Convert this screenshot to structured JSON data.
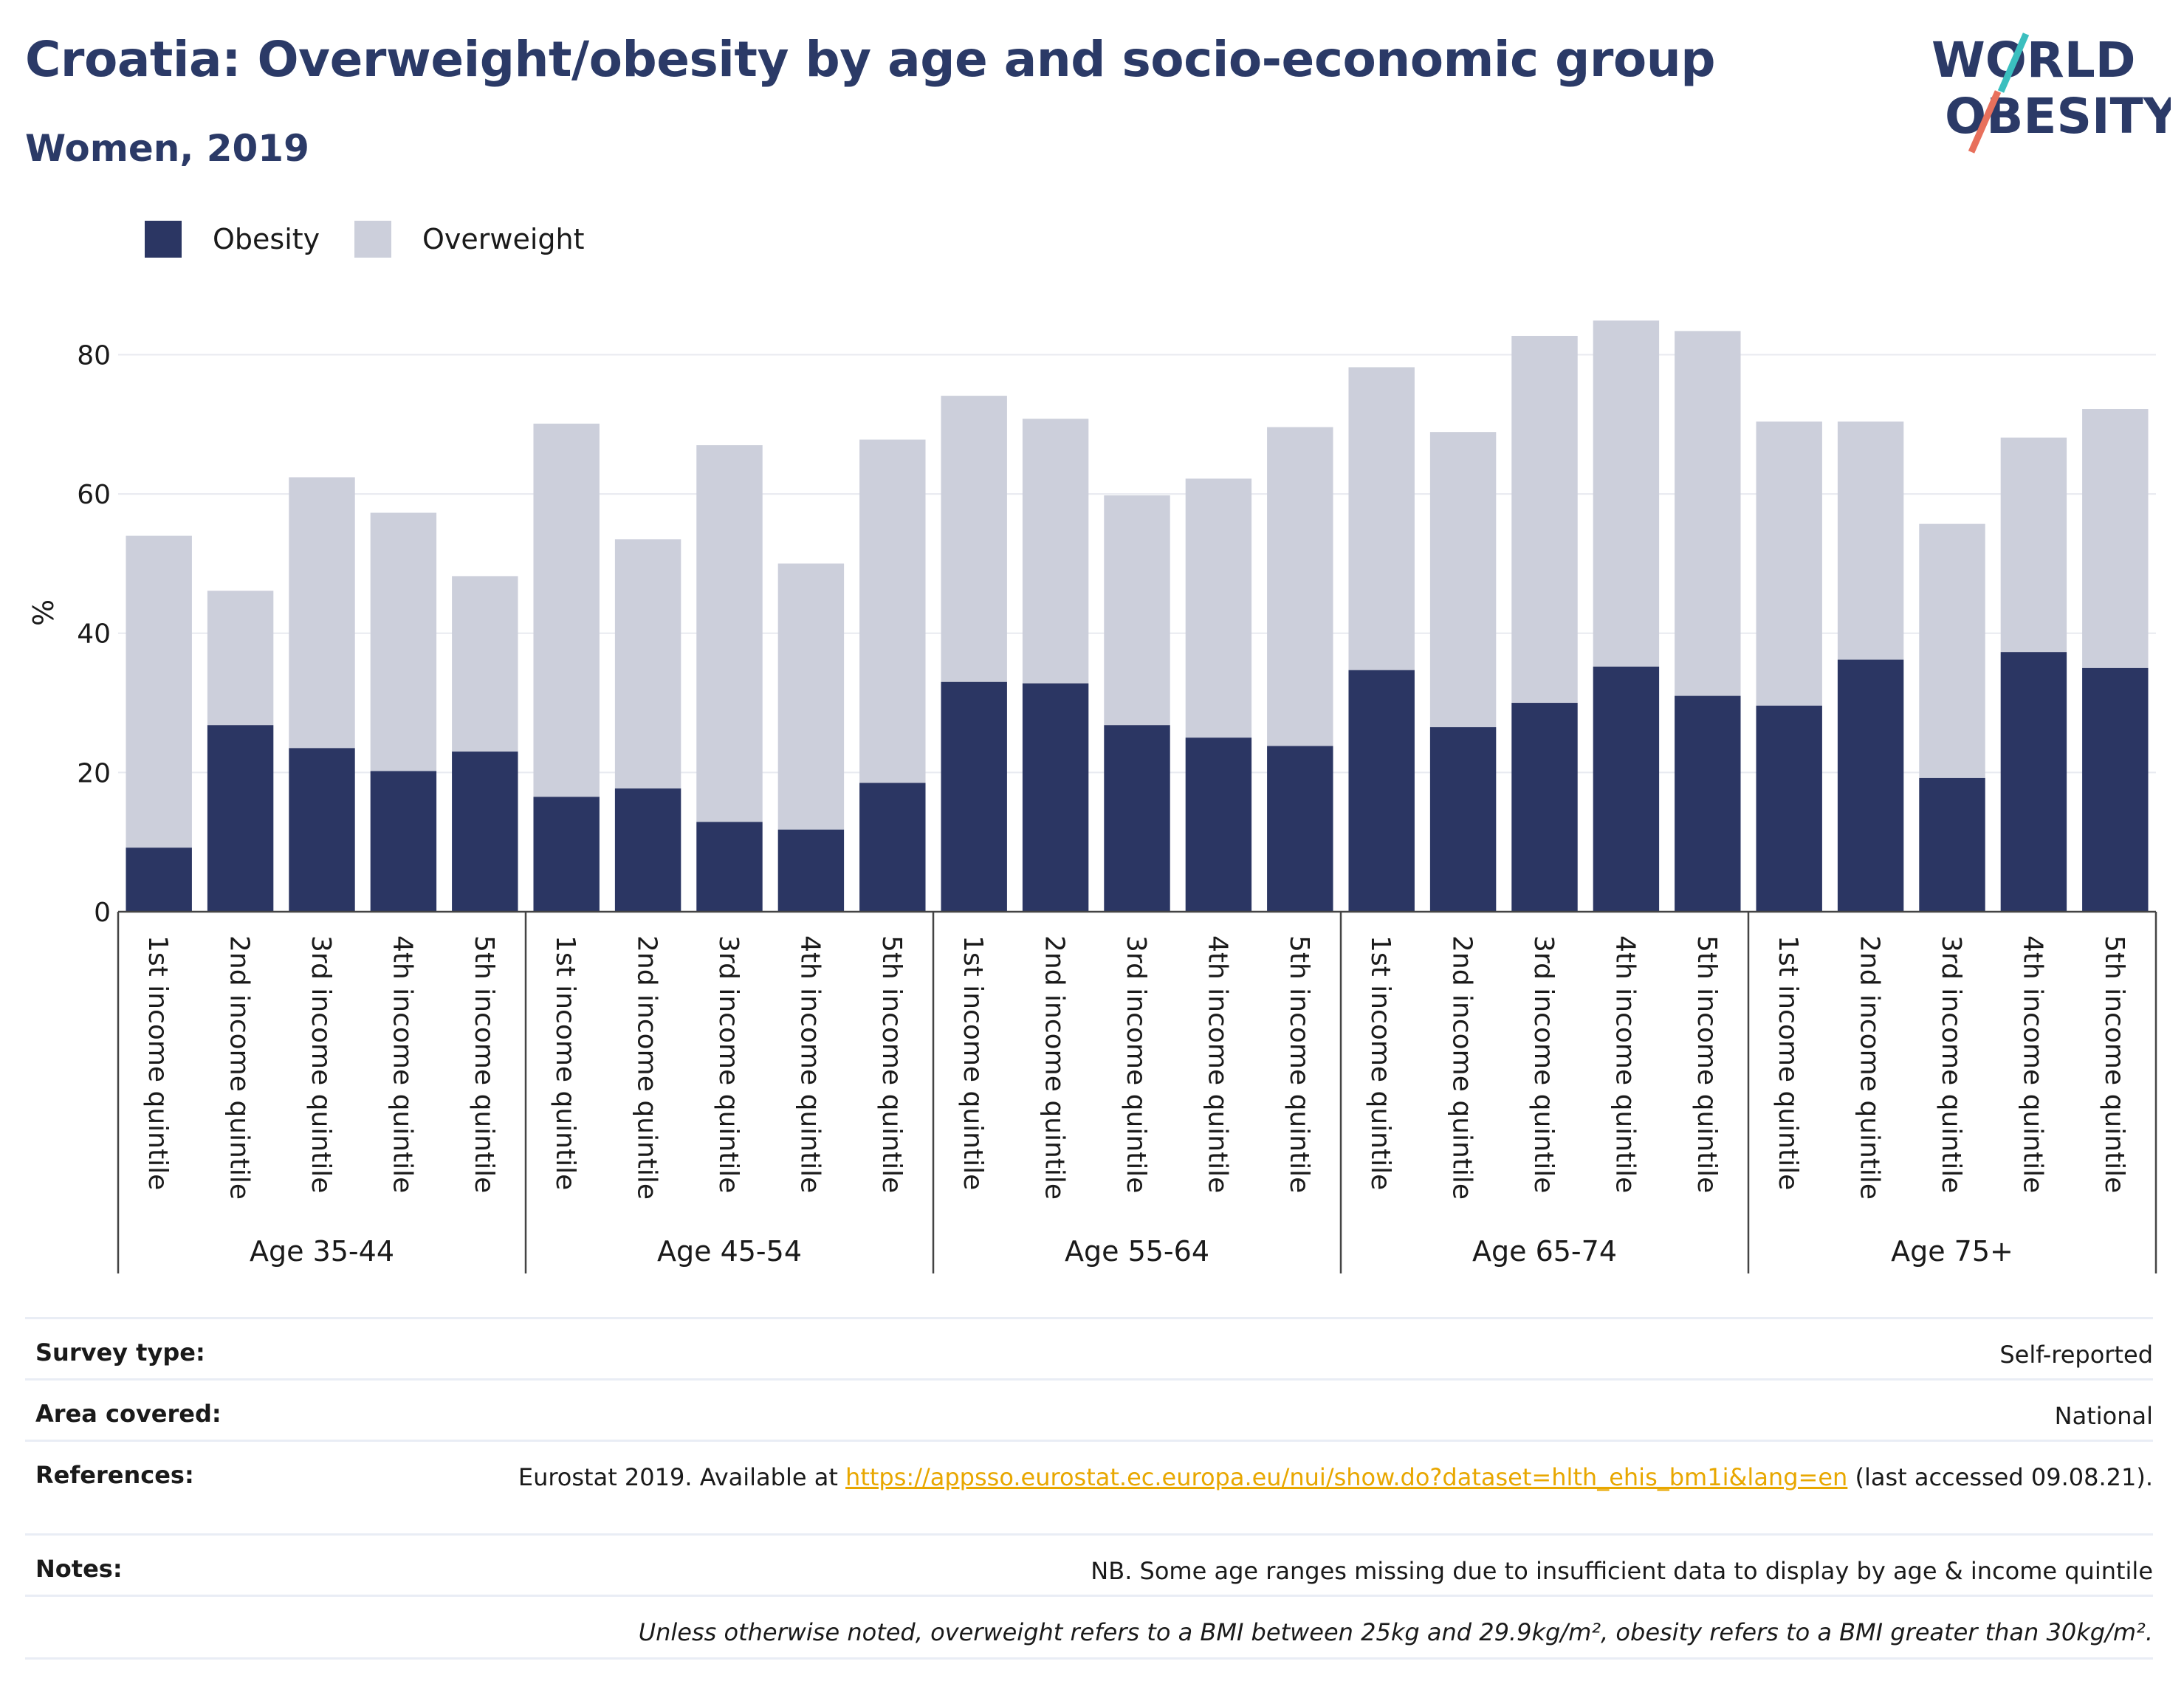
{
  "header": {
    "title": "Croatia: Overweight/obesity by age and socio-economic group",
    "subtitle": "Women, 2019"
  },
  "logo": {
    "line1": "WORLD",
    "line2": "OBESITY",
    "icon": "world-obesity-logo"
  },
  "colors": {
    "obesity": "#2b3663",
    "overweight": "#cccfdb",
    "title": "#2b3a67",
    "link": "#e8a700",
    "logo_teal": "#3bbfbf",
    "logo_coral": "#e8705c"
  },
  "legend": [
    {
      "label": "Obesity",
      "color": "#2b3663"
    },
    {
      "label": "Overweight",
      "color": "#cccfdb"
    }
  ],
  "chart_data": {
    "type": "bar",
    "stacked": true,
    "ylabel": "%",
    "xlabel": "",
    "ylim": [
      0,
      88
    ],
    "yticks": [
      0,
      20,
      40,
      60,
      80
    ],
    "grid": true,
    "legend_position": "top-left",
    "groups": [
      "Age 35-44",
      "Age 45-54",
      "Age 55-64",
      "Age 65-74",
      "Age 75+"
    ],
    "categories": [
      "1st income quintile",
      "2nd income quintile",
      "3rd income quintile",
      "4th income quintile",
      "5th income quintile"
    ],
    "series": [
      {
        "name": "Obesity",
        "values": [
          [
            9.2,
            26.8,
            23.5,
            20.2,
            23.0
          ],
          [
            16.5,
            17.7,
            12.9,
            11.8,
            18.5
          ],
          [
            33.0,
            32.8,
            26.8,
            25.0,
            23.8
          ],
          [
            34.7,
            26.5,
            30.0,
            35.2,
            31.0
          ],
          [
            29.6,
            36.2,
            19.2,
            37.3,
            35.0
          ]
        ]
      },
      {
        "name": "Overweight",
        "values": [
          [
            44.8,
            19.3,
            38.9,
            37.1,
            25.2
          ],
          [
            53.6,
            35.8,
            54.1,
            38.2,
            49.3
          ],
          [
            41.1,
            38.0,
            33.0,
            37.2,
            45.8
          ],
          [
            43.5,
            42.4,
            52.7,
            49.7,
            52.4
          ],
          [
            40.8,
            34.2,
            36.5,
            30.8,
            37.2
          ]
        ]
      }
    ]
  },
  "info": {
    "rows": [
      {
        "key": "Survey type:",
        "value": "Self-reported"
      },
      {
        "key": "Area covered:",
        "value": "National"
      },
      {
        "key": "References:",
        "value_pre": "Eurostat 2019. Available at ",
        "link": "https://appsso.eurostat.ec.europa.eu/nui/show.do?dataset=hlth_ehis_bm1i&lang=en",
        "value_post": " (last accessed 09.08.21)."
      },
      {
        "key": "Notes:",
        "value": "NB. Some age ranges missing due to insufficient data to display by age & income quintile"
      }
    ],
    "footnote": "Unless otherwise noted, overweight refers to a BMI between 25kg and 29.9kg/m², obesity refers to a BMI greater than 30kg/m²."
  }
}
